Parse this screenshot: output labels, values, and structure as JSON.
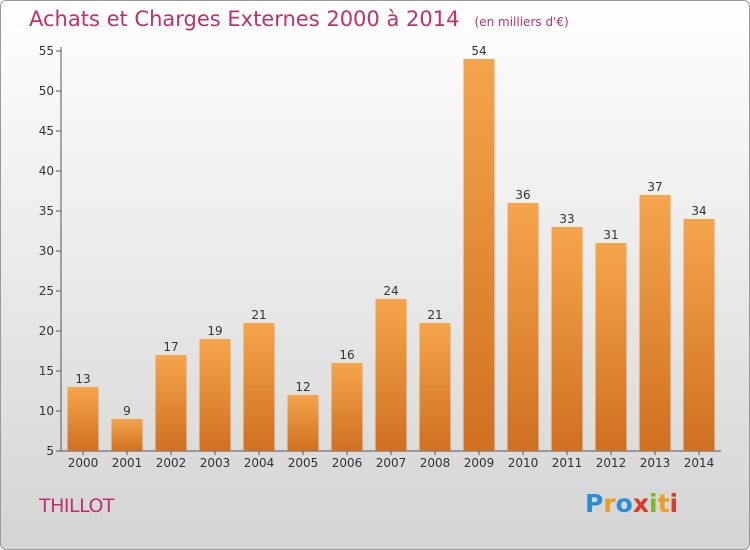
{
  "header": {
    "title": "Achats et Charges Externes 2000 à 2014",
    "unit": "(en milliers d'€)"
  },
  "footer": {
    "place": "THILLOT",
    "logo": {
      "letters": [
        "P",
        "r",
        "o",
        "x",
        "i",
        "t",
        "i"
      ],
      "colors": [
        "#2a8fd8",
        "#e8a020",
        "#2a8fd8",
        "#e0392b",
        "#7ab828",
        "#e8a020",
        "#e0392b"
      ]
    }
  },
  "colors": {
    "bar_top": "#f6a54c",
    "bar_bottom": "#d07020",
    "axis": "#555555",
    "text": "#333333"
  },
  "chart_data": {
    "type": "bar",
    "categories": [
      "2000",
      "2001",
      "2002",
      "2003",
      "2004",
      "2005",
      "2006",
      "2007",
      "2008",
      "2009",
      "2010",
      "2011",
      "2012",
      "2013",
      "2014"
    ],
    "values": [
      13,
      9,
      17,
      19,
      21,
      12,
      16,
      24,
      21,
      54,
      36,
      33,
      31,
      37,
      34
    ],
    "title": "Achats et Charges Externes 2000 à 2014",
    "xlabel": "",
    "ylabel": "",
    "ylim": [
      5,
      55
    ],
    "yticks": [
      5,
      10,
      15,
      20,
      25,
      30,
      35,
      40,
      45,
      50,
      55
    ],
    "grid": false,
    "data_labels": true
  }
}
